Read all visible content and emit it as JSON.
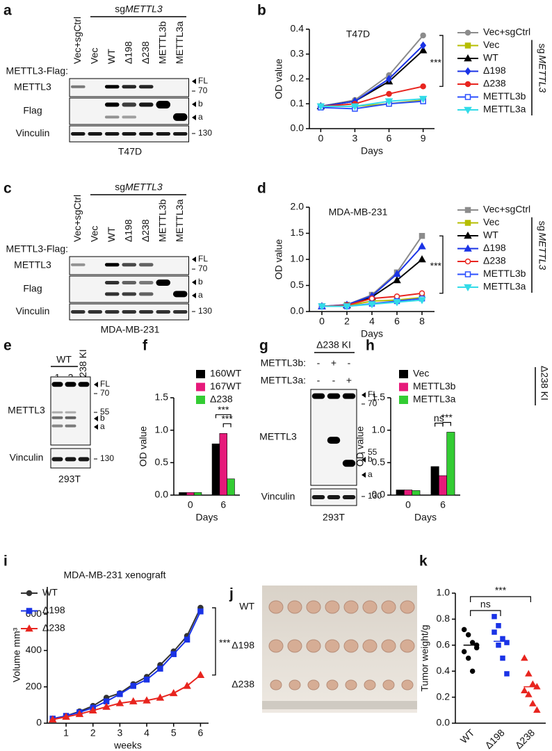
{
  "blots": [
    {
      "panel": "a",
      "group": {
        "prefix": "sg",
        "gene": "METTL3"
      },
      "lanes": [
        "Vec+sgCtrl",
        "Vec",
        "WT",
        "Δ198",
        "Δ238",
        "METTL3b",
        "METTL3a"
      ],
      "construct": "METTL3-Flag:",
      "rows": [
        "METTL3",
        "Flag",
        "Vinculin"
      ],
      "markers": [
        "FL",
        "70",
        "b",
        "a",
        "130"
      ],
      "cell_line": "T47D"
    },
    {
      "panel": "c",
      "group": {
        "prefix": "sg",
        "gene": "METTL3"
      },
      "lanes": [
        "Vec+sgCtrl",
        "Vec",
        "WT",
        "Δ198",
        "Δ238",
        "METTL3b",
        "METTL3a"
      ],
      "construct": "METTL3-Flag:",
      "rows": [
        "METTL3",
        "Flag",
        "Vinculin"
      ],
      "markers": [
        "FL",
        "70",
        "b",
        "a",
        "130"
      ],
      "cell_line": "MDA-MB-231"
    },
    {
      "panel": "e",
      "group": "WT",
      "lanes": [
        "1",
        "2",
        "Δ238 KI"
      ],
      "rows": [
        "METTL3",
        "Vinculin"
      ],
      "markers": [
        "FL",
        "70",
        "55",
        "b",
        "a",
        "130"
      ],
      "cell_line": "293T"
    },
    {
      "panel": "g",
      "group": "Δ238 KI",
      "conditions": [
        {
          "name": "METTL3b:",
          "signs": [
            "-",
            "+",
            "-"
          ]
        },
        {
          "name": "METTL3a:",
          "signs": [
            "-",
            "-",
            "+"
          ]
        }
      ],
      "rows": [
        "METTL3",
        "Vinculin"
      ],
      "markers": [
        "FL",
        "70",
        "55",
        "b",
        "a",
        "130"
      ],
      "cell_line": "293T"
    }
  ],
  "photo": {
    "panel": "j",
    "rows": [
      "WT",
      "Δ198",
      "Δ238"
    ]
  },
  "chart_data": [
    {
      "panel": "b",
      "type": "line",
      "title": "T47D",
      "x_label": "Days",
      "y_label": "OD value",
      "x": [
        0,
        3,
        6,
        9
      ],
      "xlim": [
        -1,
        10
      ],
      "xticks": [
        0,
        3,
        6,
        9
      ],
      "ylim": [
        0,
        0.4
      ],
      "yticks": [
        {
          "value": 0,
          "label": "0.0"
        },
        0.1,
        0.2,
        0.3,
        0.4
      ],
      "annotation": "***",
      "group": {
        "prefix": "sg",
        "gene": "METTL3"
      },
      "series": [
        {
          "name": "Vec+sgCtrl",
          "color": "#8c8c8c",
          "marker": "circle",
          "values": [
            0.09,
            0.115,
            0.215,
            0.375
          ]
        },
        {
          "name": "Vec",
          "color": "#b6be00",
          "marker": "square",
          "values": [
            0.09,
            0.09,
            0.1,
            0.115
          ]
        },
        {
          "name": "WT",
          "color": "#000000",
          "marker": "triangle",
          "values": [
            0.09,
            0.11,
            0.19,
            0.315
          ]
        },
        {
          "name": "Δ198",
          "color": "#1a33e6",
          "marker": "diamond",
          "values": [
            0.09,
            0.11,
            0.2,
            0.335
          ]
        },
        {
          "name": "Δ238",
          "color": "#e8251f",
          "marker": "circle",
          "values": [
            0.09,
            0.1,
            0.14,
            0.17
          ]
        },
        {
          "name": "METTL3b",
          "color": "#2b4fff",
          "marker": "open-square",
          "values": [
            0.085,
            0.08,
            0.1,
            0.11
          ]
        },
        {
          "name": "METTL3a",
          "color": "#33dbe8",
          "marker": "triangle-down",
          "values": [
            0.09,
            0.09,
            0.11,
            0.12
          ]
        }
      ]
    },
    {
      "panel": "d",
      "type": "line",
      "title": "MDA-MB-231",
      "x_label": "Days",
      "y_label": "OD value",
      "x": [
        0,
        2,
        4,
        6,
        8
      ],
      "xlim": [
        -1,
        9
      ],
      "xticks": [
        0,
        2,
        4,
        6,
        8
      ],
      "ylim": [
        0,
        2
      ],
      "yticks": [
        {
          "value": 0,
          "label": "0.0"
        },
        0.5,
        {
          "value": 1,
          "label": "1.0"
        },
        1.5,
        {
          "value": 2,
          "label": "2.0"
        }
      ],
      "annotation": "***",
      "group": {
        "prefix": "sg",
        "gene": "METTL3"
      },
      "series": [
        {
          "name": "Vec+sgCtrl",
          "color": "#8c8c8c",
          "marker": "square",
          "values": [
            0.1,
            0.13,
            0.32,
            0.75,
            1.45
          ]
        },
        {
          "name": "Vec",
          "color": "#b6be00",
          "marker": "square",
          "values": [
            0.1,
            0.11,
            0.2,
            0.22,
            0.27
          ]
        },
        {
          "name": "WT",
          "color": "#000000",
          "marker": "triangle",
          "values": [
            0.1,
            0.12,
            0.28,
            0.6,
            1.0
          ]
        },
        {
          "name": "Δ198",
          "color": "#1a33e6",
          "marker": "triangle",
          "values": [
            0.1,
            0.13,
            0.3,
            0.72,
            1.25
          ]
        },
        {
          "name": "Δ238",
          "color": "#e8251f",
          "marker": "open-circle",
          "values": [
            0.1,
            0.12,
            0.25,
            0.29,
            0.35
          ]
        },
        {
          "name": "METTL3b",
          "color": "#2b4fff",
          "marker": "open-square",
          "values": [
            0.1,
            0.1,
            0.15,
            0.2,
            0.25
          ]
        },
        {
          "name": "METTL3a",
          "color": "#33dbe8",
          "marker": "triangle-down",
          "values": [
            0.1,
            0.1,
            0.14,
            0.18,
            0.22
          ]
        }
      ]
    },
    {
      "panel": "f",
      "type": "bar",
      "categories": [
        "0",
        "6"
      ],
      "x_label": "Days",
      "y_label": "OD value",
      "ylim": [
        0,
        1.5
      ],
      "yticks": [
        {
          "value": 0,
          "label": "0.0"
        },
        0.5,
        {
          "value": 1,
          "label": "1.0"
        },
        1.5
      ],
      "annotations": [
        "***",
        "***"
      ],
      "series": [
        {
          "name": "160WT",
          "color": "#000000",
          "values": [
            0.04,
            0.79
          ]
        },
        {
          "name": "167WT",
          "color": "#e6197a",
          "values": [
            0.04,
            0.95
          ]
        },
        {
          "name": "Δ238",
          "color": "#33cc33",
          "values": [
            0.04,
            0.25
          ]
        }
      ]
    },
    {
      "panel": "h",
      "type": "bar",
      "categories": [
        "0",
        "6"
      ],
      "x_label": "Days",
      "y_label": "OD value",
      "ylim": [
        0,
        1.5
      ],
      "yticks": [
        {
          "value": 0,
          "label": "0.0"
        },
        0.5,
        {
          "value": 1,
          "label": "1.0"
        },
        1.5
      ],
      "annotations": [
        "ns",
        "***"
      ],
      "group_label": "Δ238 KI",
      "series": [
        {
          "name": "Vec",
          "color": "#000000",
          "values": [
            0.08,
            0.44
          ]
        },
        {
          "name": "METTL3b",
          "color": "#e6197a",
          "values": [
            0.08,
            0.3
          ]
        },
        {
          "name": "METTL3a",
          "color": "#33cc33",
          "values": [
            0.07,
            0.97
          ]
        }
      ]
    },
    {
      "panel": "i",
      "type": "line",
      "title": "MDA-MB-231 xenograft",
      "x_label": "weeks",
      "y_label": "Volume mm³",
      "x": [
        0.5,
        1,
        1.5,
        2,
        2.5,
        3,
        3.5,
        4,
        4.5,
        5,
        5.5,
        6
      ],
      "xlim": [
        0.3,
        6.3
      ],
      "xticks": [
        1,
        2,
        3,
        4,
        5,
        6
      ],
      "ylim": [
        0,
        750
      ],
      "yticks": [
        0,
        200,
        400,
        600
      ],
      "annotation": "***",
      "series": [
        {
          "name": "WT",
          "color": "#333333",
          "marker": "circle",
          "values": [
            25,
            40,
            65,
            95,
            140,
            165,
            215,
            255,
            320,
            395,
            480,
            635
          ]
        },
        {
          "name": "Δ198",
          "color": "#1a33e6",
          "marker": "square",
          "values": [
            25,
            40,
            60,
            85,
            120,
            160,
            205,
            240,
            300,
            380,
            460,
            615
          ]
        },
        {
          "name": "Δ238",
          "color": "#e8251f",
          "marker": "triangle",
          "values": [
            20,
            35,
            50,
            70,
            90,
            110,
            120,
            125,
            140,
            165,
            205,
            265
          ]
        }
      ]
    },
    {
      "panel": "k",
      "type": "dot",
      "categories": [
        "WT",
        "Δ198",
        "Δ238"
      ],
      "y_label": "Tumor weight/g",
      "ylim": [
        0,
        1
      ],
      "yticks": [
        {
          "value": 0,
          "label": "0.0"
        },
        0.2,
        0.4,
        0.6,
        0.8,
        {
          "value": 1,
          "label": "1.0"
        }
      ],
      "annotations": [
        "ns",
        "***"
      ],
      "colors": [
        "#000000",
        "#1a33e6",
        "#e8251f"
      ],
      "markers": [
        "circle",
        "square",
        "triangle"
      ],
      "values": [
        [
          0.72,
          0.68,
          0.62,
          0.58,
          0.55,
          0.5,
          0.4,
          0.6
        ],
        [
          0.82,
          0.75,
          0.65,
          0.62,
          0.7,
          0.6,
          0.5,
          0.38
        ],
        [
          0.5,
          0.38,
          0.3,
          0.28,
          0.25,
          0.22,
          0.15,
          0.1
        ]
      ],
      "means": [
        0.6,
        0.63,
        0.28
      ]
    }
  ]
}
